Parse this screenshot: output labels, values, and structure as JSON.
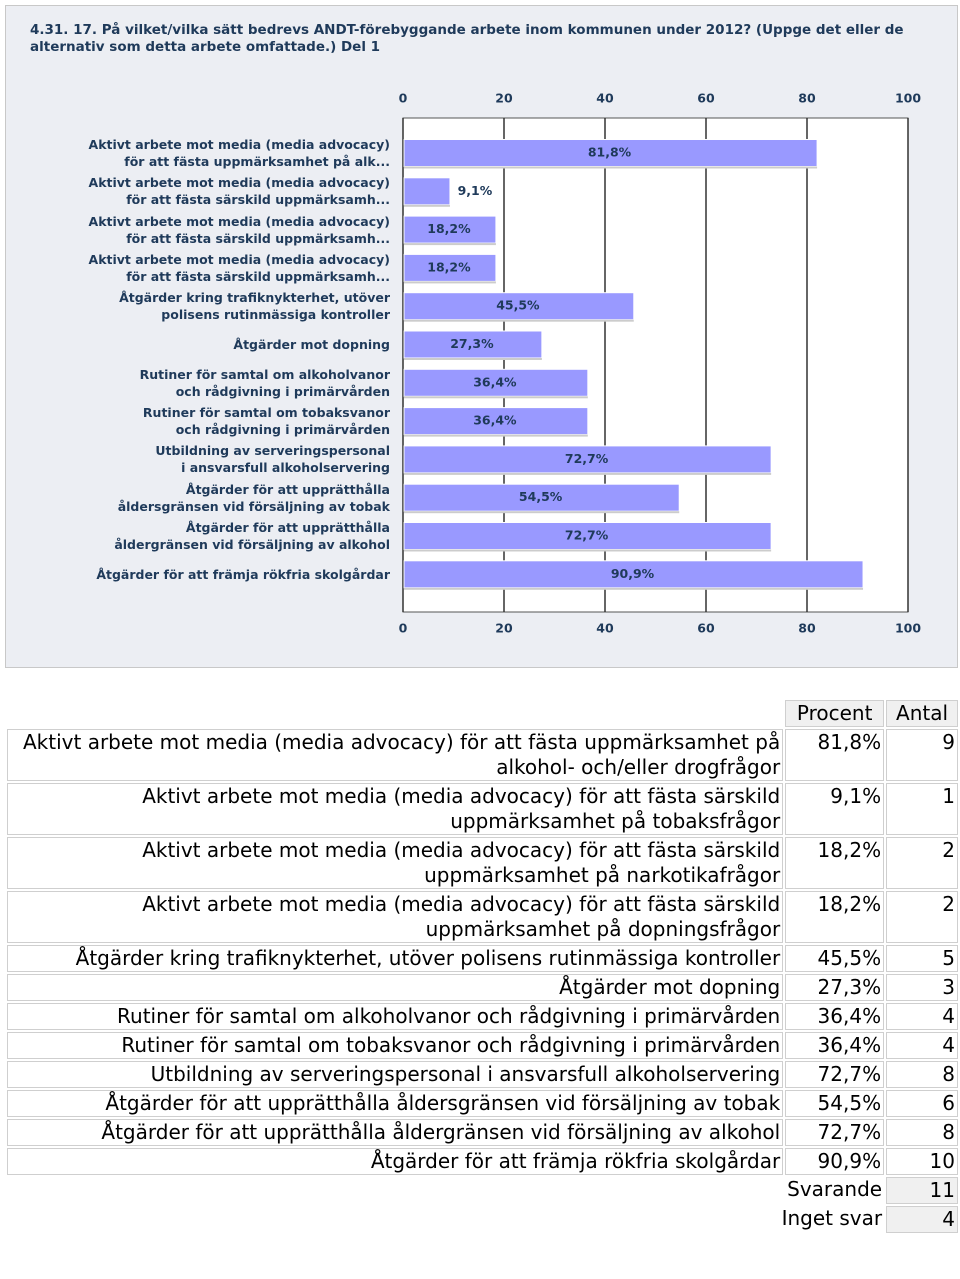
{
  "chart_data": {
    "type": "hbar",
    "title": "4.31. 17. På vilket/vilka sätt bedrevs ANDT-förebyggande arbete inom kommunen under 2012? (Uppge det eller de alternativ som detta arbete omfattade.) Del 1",
    "categories": [
      "Aktivt arbete mot media (media advocacy)\nför att fästa uppmärksamhet på alk...",
      "Aktivt arbete mot media (media advocacy)\nför att fästa särskild uppmärksamh...",
      "Aktivt arbete mot media (media advocacy)\nför att fästa särskild uppmärksamh...",
      "Aktivt arbete mot media (media advocacy)\nför att fästa särskild uppmärksamh...",
      "Åtgärder kring trafiknykterhet, utöver\npolisens rutinmässiga kontroller",
      "Åtgärder mot dopning",
      "Rutiner för samtal om alkoholvanor\noch rådgivning i primärvården",
      "Rutiner för samtal om tobaksvanor\noch rådgivning i primärvården",
      "Utbildning av serveringspersonal\ni ansvarsfull alkoholservering",
      "Åtgärder för att upprätthålla\nåldersgränsen vid försäljning av tobak",
      "Åtgärder för att upprätthålla\nåldergränsen vid försäljning av alkohol",
      "Åtgärder för att främja rökfria skolgårdar"
    ],
    "values": [
      81.8,
      9.1,
      18.2,
      18.2,
      45.5,
      27.3,
      36.4,
      36.4,
      72.7,
      54.5,
      72.7,
      90.9
    ],
    "value_labels": [
      "81,8%",
      "9,1%",
      "18,2%",
      "18,2%",
      "45,5%",
      "27,3%",
      "36,4%",
      "36,4%",
      "72,7%",
      "54,5%",
      "72,7%",
      "90,9%"
    ],
    "color": "#9999ff",
    "xlim": [
      0,
      100
    ],
    "xticks": [
      0,
      20,
      40,
      60,
      80,
      100
    ],
    "grid": true
  },
  "table": {
    "header": [
      "Procent",
      "Antal"
    ],
    "rows": [
      [
        "Aktivt arbete mot media (media advocacy) för att fästa uppmärksamhet på alkohol- och/eller drogfrågor",
        "81,8%",
        9
      ],
      [
        "Aktivt arbete mot media (media advocacy) för att fästa särskild uppmärksamhet på tobaksfrågor",
        "9,1%",
        1
      ],
      [
        "Aktivt arbete mot media (media advocacy) för att fästa särskild uppmärksamhet på narkotikafrågor",
        "18,2%",
        2
      ],
      [
        "Aktivt arbete mot media (media advocacy) för att fästa särskild uppmärksamhet på dopningsfrågor",
        "18,2%",
        2
      ],
      [
        "Åtgärder kring trafiknykterhet, utöver polisens rutinmässiga kontroller",
        "45,5%",
        5
      ],
      [
        "Åtgärder mot dopning",
        "27,3%",
        3
      ],
      [
        "Rutiner för samtal om alkoholvanor och rådgivning i primärvården",
        "36,4%",
        4
      ],
      [
        "Rutiner för samtal om tobaksvanor och rådgivning i primärvården",
        "36,4%",
        4
      ],
      [
        "Utbildning av serveringspersonal i ansvarsfull alkoholservering",
        "72,7%",
        8
      ],
      [
        "Åtgärder för att upprätthålla åldersgränsen vid försäljning av tobak",
        "54,5%",
        6
      ],
      [
        "Åtgärder för att upprätthålla åldergränsen vid försäljning av alkohol",
        "72,7%",
        8
      ],
      [
        "Åtgärder för att främja rökfria skolgårdar",
        "90,9%",
        10
      ]
    ],
    "footer": [
      [
        "Svarande",
        11
      ],
      [
        "Inget svar",
        4
      ]
    ]
  }
}
